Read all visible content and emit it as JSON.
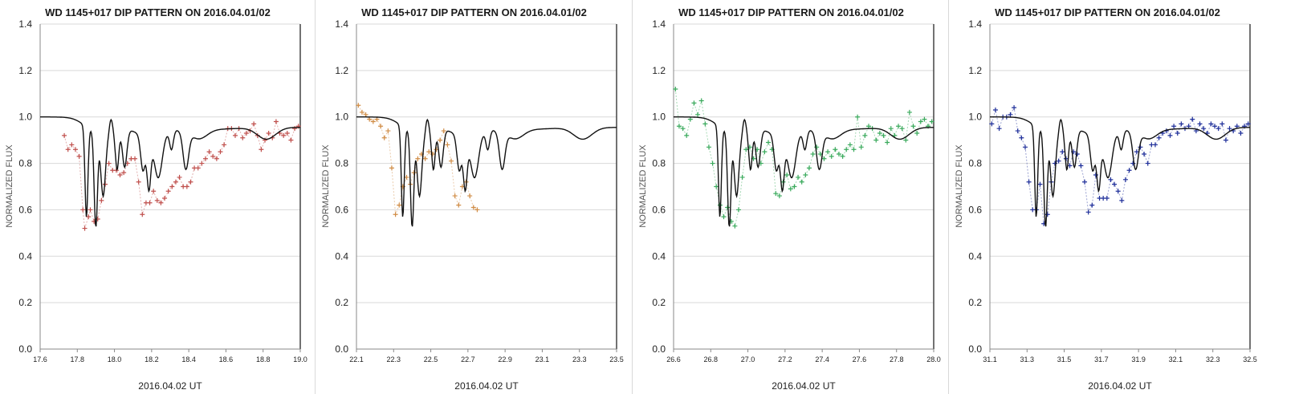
{
  "chart_data": [
    {
      "type": "scatter",
      "title": "WD 1145+017 DIP PATTERN ON 2016.04.01/02",
      "xlabel": "2016.04.02 UT",
      "ylabel": "NORMALIZED FLUX",
      "xlim": [
        17.6,
        19.0
      ],
      "ylim": [
        0,
        1.4
      ],
      "xticks": [
        "17.6",
        "17.8",
        "18.0",
        "18.2",
        "18.4",
        "18.6",
        "18.8",
        "19.0"
      ],
      "yticks": [
        "0.0",
        "0.2",
        "0.4",
        "0.6",
        "0.8",
        "1.0",
        "1.2",
        "1.4"
      ],
      "grid": true,
      "series": [
        {
          "color": "#c0504d",
          "marker": "plus",
          "connector": true,
          "x": [
            17.73,
            17.75,
            17.77,
            17.79,
            17.81,
            17.83,
            17.84,
            17.86,
            17.87,
            17.89,
            17.91,
            17.93,
            17.95,
            17.97,
            17.99,
            18.01,
            18.03,
            18.05,
            18.07,
            18.09,
            18.11,
            18.13,
            18.15,
            18.17,
            18.19,
            18.21,
            18.23,
            18.25,
            18.27,
            18.29,
            18.31,
            18.33,
            18.35,
            18.37,
            18.39,
            18.41,
            18.43,
            18.45,
            18.47,
            18.49,
            18.51,
            18.53,
            18.55,
            18.57,
            18.59,
            18.61,
            18.63,
            18.65,
            18.67,
            18.69,
            18.71,
            18.73,
            18.75,
            18.77,
            18.79,
            18.81,
            18.83,
            18.85,
            18.87,
            18.89,
            18.91,
            18.93,
            18.95,
            18.97,
            18.99
          ],
          "y": [
            0.92,
            0.86,
            0.88,
            0.86,
            0.83,
            0.6,
            0.52,
            0.57,
            0.6,
            0.55,
            0.56,
            0.64,
            0.71,
            0.8,
            0.77,
            0.77,
            0.75,
            0.76,
            0.8,
            0.82,
            0.82,
            0.72,
            0.58,
            0.63,
            0.63,
            0.68,
            0.64,
            0.63,
            0.65,
            0.68,
            0.7,
            0.72,
            0.74,
            0.7,
            0.7,
            0.72,
            0.78,
            0.78,
            0.8,
            0.82,
            0.85,
            0.83,
            0.82,
            0.85,
            0.88,
            0.95,
            0.95,
            0.92,
            0.95,
            0.91,
            0.93,
            0.94,
            0.97,
            0.92,
            0.86,
            0.9,
            0.93,
            0.91,
            0.98,
            0.93,
            0.92,
            0.93,
            0.9,
            0.95,
            0.96
          ]
        }
      ],
      "model": {
        "color": "#111111"
      }
    },
    {
      "type": "scatter",
      "title": "WD 1145+017 DIP PATTERN ON 2016.04.01/02",
      "xlabel": "2016.04.02 UT",
      "ylabel": "NORMALIZED FLUX",
      "xlim": [
        22.1,
        23.5
      ],
      "ylim": [
        0,
        1.4
      ],
      "xticks": [
        "22.1",
        "22.3",
        "22.5",
        "22.7",
        "22.9",
        "23.1",
        "23.3",
        "23.5"
      ],
      "yticks": [
        "0.0",
        "0.2",
        "0.4",
        "0.6",
        "0.8",
        "1.0",
        "1.2",
        "1.4"
      ],
      "grid": true,
      "series": [
        {
          "color": "#d08c45",
          "marker": "plus",
          "connector": true,
          "x": [
            22.11,
            22.13,
            22.15,
            22.17,
            22.19,
            22.21,
            22.23,
            22.25,
            22.27,
            22.29,
            22.31,
            22.33,
            22.35,
            22.37,
            22.39,
            22.41,
            22.43,
            22.45,
            22.47,
            22.49,
            22.51,
            22.53,
            22.55,
            22.57,
            22.59,
            22.61,
            22.63,
            22.65,
            22.67,
            22.69,
            22.71,
            22.73,
            22.75
          ],
          "y": [
            1.05,
            1.02,
            1.01,
            0.99,
            0.98,
            0.99,
            0.96,
            0.91,
            0.94,
            0.78,
            0.58,
            0.62,
            0.7,
            0.74,
            0.71,
            0.76,
            0.82,
            0.84,
            0.82,
            0.85,
            0.84,
            0.86,
            0.9,
            0.94,
            0.88,
            0.81,
            0.66,
            0.62,
            0.7,
            0.72,
            0.66,
            0.61,
            0.6
          ]
        }
      ],
      "model": {
        "color": "#111111"
      }
    },
    {
      "type": "scatter",
      "title": "WD 1145+017 DIP PATTERN ON 2016.04.01/02",
      "xlabel": "2016.04.02 UT",
      "ylabel": "NORMALIZED FLUX",
      "xlim": [
        26.6,
        28.0
      ],
      "ylim": [
        0,
        1.4
      ],
      "xticks": [
        "26.6",
        "26.8",
        "27.0",
        "27.2",
        "27.4",
        "27.6",
        "27.8",
        "28.0"
      ],
      "yticks": [
        "0.0",
        "0.2",
        "0.4",
        "0.6",
        "0.8",
        "1.0",
        "1.2",
        "1.4"
      ],
      "grid": true,
      "series": [
        {
          "color": "#3aaa5c",
          "marker": "plus",
          "connector": true,
          "x": [
            26.61,
            26.63,
            26.65,
            26.67,
            26.69,
            26.71,
            26.73,
            26.75,
            26.77,
            26.79,
            26.81,
            26.83,
            26.85,
            26.87,
            26.89,
            26.91,
            26.93,
            26.95,
            26.97,
            26.99,
            27.01,
            27.03,
            27.05,
            27.07,
            27.09,
            27.11,
            27.13,
            27.15,
            27.17,
            27.19,
            27.21,
            27.23,
            27.25,
            27.27,
            27.29,
            27.31,
            27.33,
            27.35,
            27.37,
            27.39,
            27.41,
            27.43,
            27.45,
            27.47,
            27.49,
            27.51,
            27.53,
            27.55,
            27.57,
            27.59,
            27.61,
            27.63,
            27.65,
            27.67,
            27.69,
            27.71,
            27.73,
            27.75,
            27.77,
            27.79,
            27.81,
            27.83,
            27.85,
            27.87,
            27.89,
            27.91,
            27.93,
            27.95,
            27.97,
            27.99
          ],
          "y": [
            1.12,
            0.96,
            0.95,
            0.92,
            0.99,
            1.06,
            1.01,
            1.07,
            0.97,
            0.87,
            0.8,
            0.7,
            0.62,
            0.57,
            0.61,
            0.55,
            0.53,
            0.6,
            0.74,
            0.86,
            0.87,
            0.82,
            0.86,
            0.8,
            0.85,
            0.89,
            0.86,
            0.67,
            0.66,
            0.72,
            0.75,
            0.69,
            0.7,
            0.74,
            0.72,
            0.75,
            0.78,
            0.84,
            0.87,
            0.84,
            0.82,
            0.85,
            0.83,
            0.86,
            0.84,
            0.83,
            0.86,
            0.88,
            0.86,
            1.0,
            0.87,
            0.92,
            0.96,
            0.95,
            0.9,
            0.93,
            0.92,
            0.89,
            0.95,
            0.92,
            0.96,
            0.95,
            0.9,
            1.02,
            0.96,
            0.93,
            0.98,
            0.99,
            0.96,
            0.98
          ]
        }
      ],
      "model": {
        "color": "#111111"
      }
    },
    {
      "type": "scatter",
      "title": "WD 1145+017 DIP PATTERN ON 2016.04.01/02",
      "xlabel": "2016.04.02 UT",
      "ylabel": "NORMALIZED FLUX",
      "xlim": [
        31.1,
        32.5
      ],
      "ylim": [
        0,
        1.4
      ],
      "xticks": [
        "31.1",
        "31.3",
        "31.5",
        "31.7",
        "31.9",
        "32.1",
        "32.3",
        "32.5"
      ],
      "yticks": [
        "0.0",
        "0.2",
        "0.4",
        "0.6",
        "0.8",
        "1.0",
        "1.2",
        "1.4"
      ],
      "grid": true,
      "series": [
        {
          "color": "#1f2f9a",
          "marker": "plus",
          "connector": true,
          "x": [
            31.11,
            31.13,
            31.15,
            31.17,
            31.19,
            31.21,
            31.23,
            31.25,
            31.27,
            31.29,
            31.31,
            31.33,
            31.35,
            31.37,
            31.39,
            31.41,
            31.43,
            31.45,
            31.47,
            31.49,
            31.51,
            31.53,
            31.55,
            31.57,
            31.59,
            31.61,
            31.63,
            31.65,
            31.67,
            31.69,
            31.71,
            31.73,
            31.75,
            31.77,
            31.79,
            31.81,
            31.83,
            31.85,
            31.87,
            31.89,
            31.91,
            31.93,
            31.95,
            31.97,
            31.99,
            32.01,
            32.03,
            32.05,
            32.07,
            32.09,
            32.11,
            32.13,
            32.15,
            32.17,
            32.19,
            32.21,
            32.23,
            32.25,
            32.27,
            32.29,
            32.31,
            32.33,
            32.35,
            32.37,
            32.39,
            32.41,
            32.43,
            32.45,
            32.47,
            32.49
          ],
          "y": [
            0.97,
            1.03,
            0.95,
            1.0,
            1.0,
            1.01,
            1.04,
            0.94,
            0.91,
            0.87,
            0.72,
            0.6,
            0.6,
            0.71,
            0.54,
            0.58,
            0.72,
            0.8,
            0.81,
            0.85,
            0.82,
            0.79,
            0.85,
            0.84,
            0.79,
            0.72,
            0.59,
            0.62,
            0.75,
            0.65,
            0.65,
            0.65,
            0.73,
            0.71,
            0.68,
            0.64,
            0.73,
            0.77,
            0.8,
            0.85,
            0.87,
            0.84,
            0.8,
            0.88,
            0.88,
            0.91,
            0.93,
            0.94,
            0.92,
            0.96,
            0.93,
            0.97,
            0.95,
            0.96,
            0.99,
            0.94,
            0.97,
            0.95,
            0.93,
            0.97,
            0.96,
            0.95,
            0.97,
            0.9,
            0.95,
            0.94,
            0.96,
            0.93,
            0.96,
            0.97
          ]
        }
      ],
      "model": {
        "color": "#111111"
      }
    }
  ]
}
